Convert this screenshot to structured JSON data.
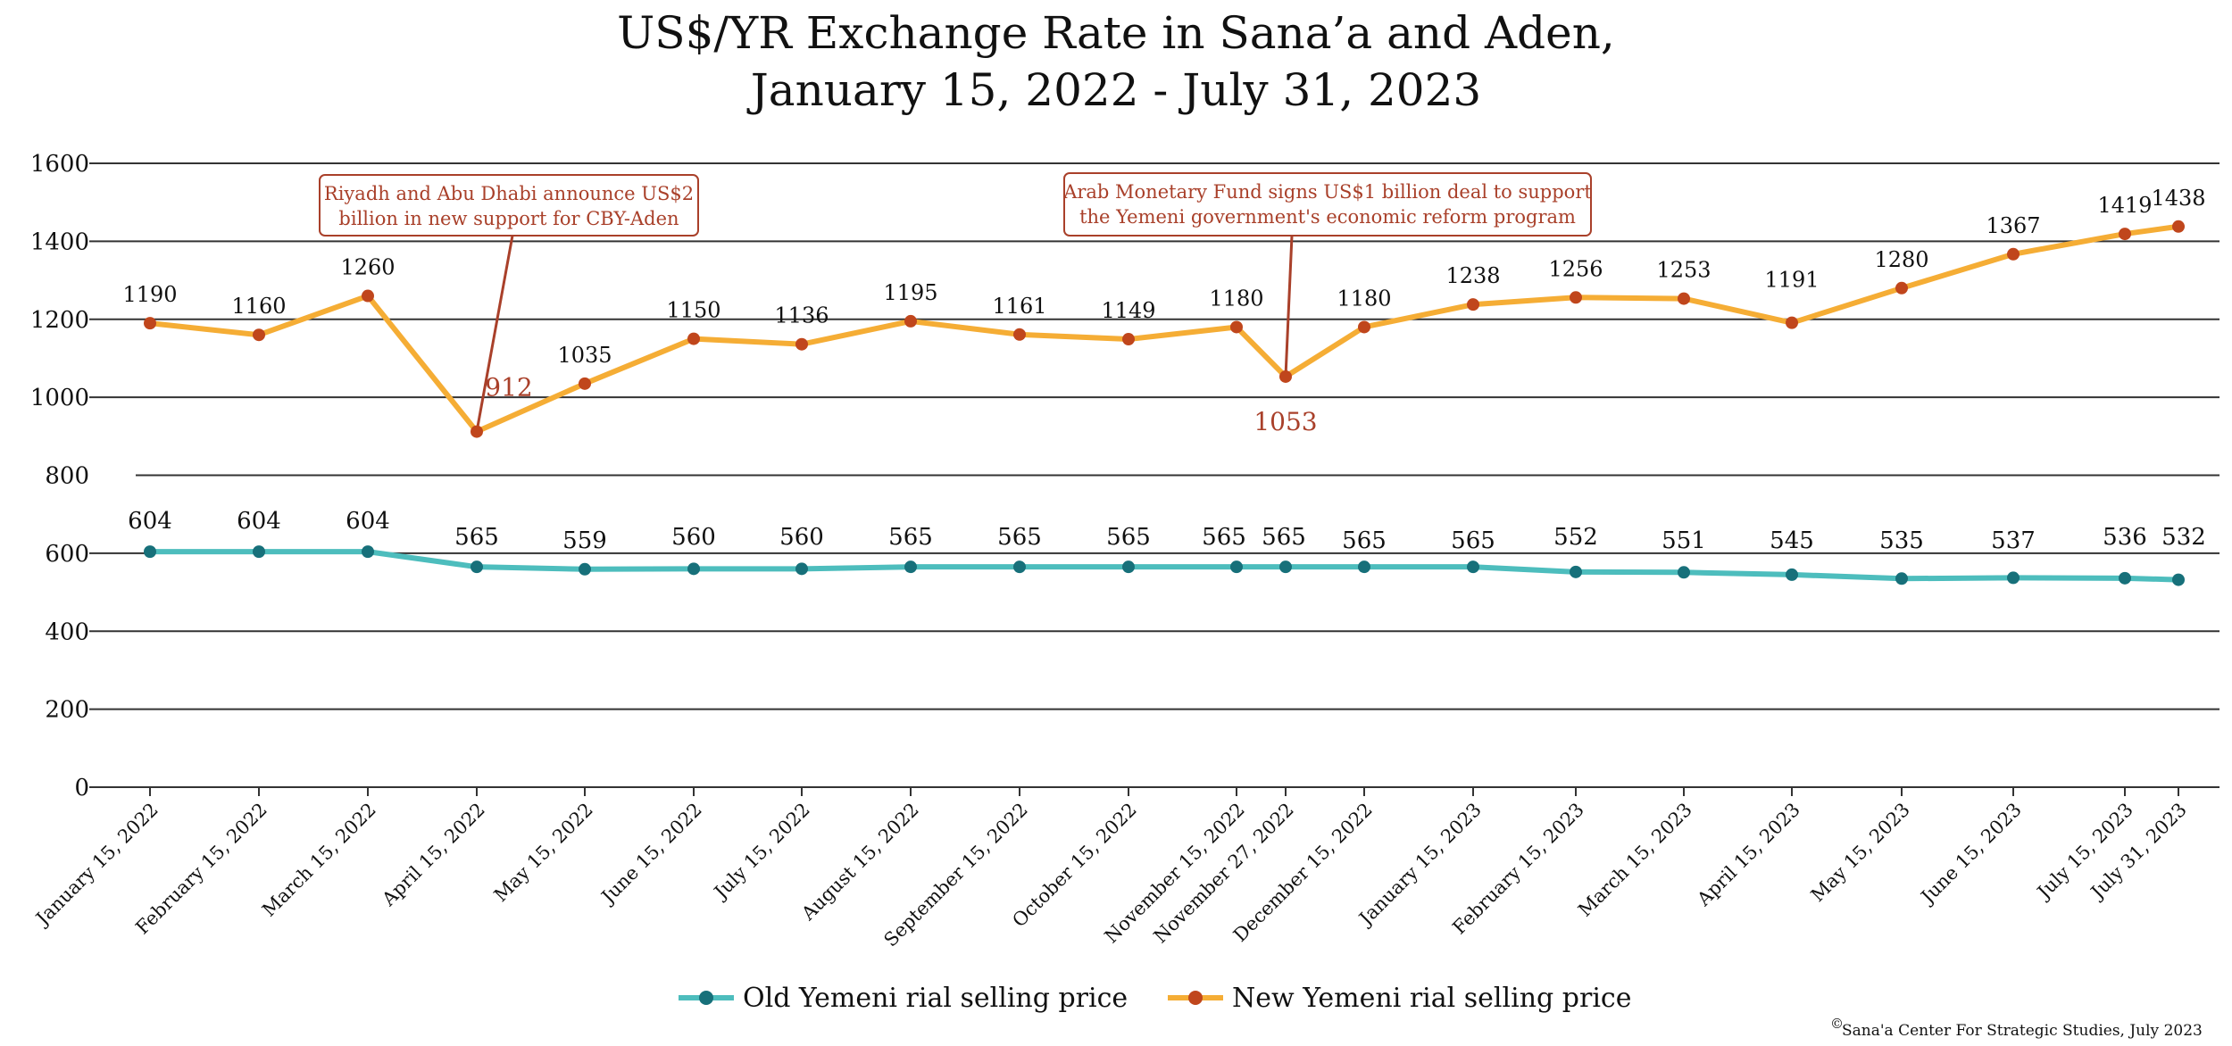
{
  "title_line1": "US$/YR Exchange Rate in Sana’a and Aden,",
  "title_line2": "January 15, 2022 - July 31, 2023",
  "credit": "Sana'a Center For Strategic Studies, July 2023",
  "credit_symbol": "©",
  "colors": {
    "old_line": "#4dbdbd",
    "old_marker": "#17707a",
    "new_line": "#f5ad35",
    "new_marker": "#c0461c",
    "annotation": "#a9402a",
    "grid": "#333333"
  },
  "chart_data": {
    "type": "line",
    "categories": [
      "January 15, 2022",
      "February 15, 2022",
      "March 15, 2022",
      "April 15, 2022",
      "May 15, 2022",
      "June 15, 2022",
      "July 15, 2022",
      "August 15, 2022",
      "September 15, 2022",
      "October 15, 2022",
      "November 15, 2022",
      "November 27, 2022",
      "December 15, 2022",
      "January 15, 2023",
      "February 15, 2023",
      "March 15, 2023",
      "April 15, 2023",
      "May 15, 2023",
      "June 15, 2023",
      "July 15, 2023",
      "July 31, 2023"
    ],
    "series": [
      {
        "name": "Old Yemeni rial selling price",
        "values": [
          604,
          604,
          604,
          565,
          559,
          560,
          560,
          565,
          565,
          565,
          565,
          565,
          565,
          565,
          552,
          551,
          545,
          535,
          537,
          536,
          532
        ]
      },
      {
        "name": "New Yemeni rial selling price",
        "values": [
          1190,
          1160,
          1260,
          912,
          1035,
          1150,
          1136,
          1195,
          1161,
          1149,
          1180,
          1053,
          1180,
          1238,
          1256,
          1253,
          1191,
          1280,
          1367,
          1419,
          1438
        ]
      }
    ],
    "yticks": [
      "0",
      "200",
      "400",
      "600",
      "800",
      "1000",
      "1200",
      "1400",
      "1600"
    ],
    "ylim": [
      0,
      1600
    ],
    "grid": true,
    "legend_position": "bottom-center",
    "annotations": [
      {
        "text": [
          "Riyadh and Abu Dhabi announce US$2",
          "billion in new support for CBY-Aden"
        ],
        "category": "April 15, 2022",
        "value": 912
      },
      {
        "text": [
          "Arab Monetary Fund signs US$1 billion deal to support",
          "the Yemeni government's economic reform program"
        ],
        "category": "November 27, 2022",
        "value": 1053
      }
    ]
  }
}
